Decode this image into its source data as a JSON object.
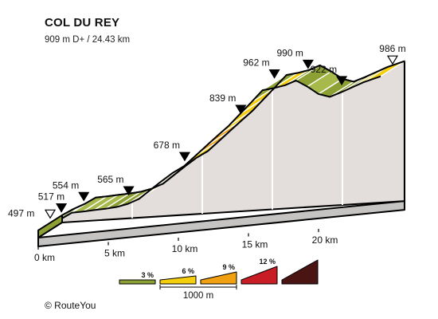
{
  "chart_data": {
    "type": "area",
    "title": "COL DU REY",
    "subtitle": "909 m D+ / 24.43 km",
    "distances_km": [
      0,
      0.8,
      1.6,
      2.4,
      3.2,
      4.0,
      4.8,
      5.6,
      6.4,
      7.2,
      8.0,
      8.8,
      9.6,
      10.4,
      11.2,
      12.0,
      12.8,
      13.6,
      14.4,
      15.2,
      16.0,
      16.8,
      17.6,
      18.4,
      19.2,
      20.0,
      20.8,
      21.6,
      22.4,
      23.2,
      24.43
    ],
    "elevations_m": [
      497,
      517,
      533,
      554,
      556,
      559,
      561,
      565,
      574,
      590,
      620,
      650,
      678,
      700,
      735,
      770,
      805,
      839,
      880,
      920,
      962,
      967,
      975,
      990,
      965,
      935,
      922,
      936,
      952,
      968,
      986
    ],
    "grade_bands": [
      "3",
      "3",
      "3",
      "0",
      "0",
      "0",
      "3",
      "3",
      "6",
      "6",
      "3",
      "6",
      "6",
      "6",
      "9",
      "9",
      "6",
      "6",
      "6",
      "3",
      "3",
      "6",
      "3",
      "3",
      "0",
      "3",
      "3",
      "3",
      "6",
      "6"
    ],
    "markers": [
      {
        "label": "497 m",
        "km": 0,
        "shape": "open"
      },
      {
        "label": "517 m",
        "km": 0.8,
        "shape": "filled"
      },
      {
        "label": "554 m",
        "km": 2.4,
        "shape": "filled"
      },
      {
        "label": "565 m",
        "km": 5.6,
        "shape": "filled"
      },
      {
        "label": "678 m",
        "km": 9.6,
        "shape": "filled"
      },
      {
        "label": "839 m",
        "km": 13.6,
        "shape": "filled"
      },
      {
        "label": "962 m",
        "km": 16.0,
        "shape": "filled"
      },
      {
        "label": "990 m",
        "km": 18.4,
        "shape": "filled"
      },
      {
        "label": "922 m",
        "km": 20.8,
        "shape": "filled"
      },
      {
        "label": "986 m",
        "km": 24.43,
        "shape": "open"
      }
    ],
    "x_ticks": [
      {
        "km": 0,
        "label": "0 km"
      },
      {
        "km": 5,
        "label": "5 km"
      },
      {
        "km": 10,
        "label": "10 km"
      },
      {
        "km": 15,
        "label": "15 km"
      },
      {
        "km": 20,
        "label": "20 km"
      }
    ],
    "legend": [
      {
        "label": "3 %",
        "color": "#8ca033"
      },
      {
        "label": "6 %",
        "color": "#f5cf0e"
      },
      {
        "label": "9 %",
        "color": "#f0a010"
      },
      {
        "label": "12 %",
        "color": "#c81d24"
      },
      {
        "label": "",
        "color": "#4a1412"
      }
    ],
    "scale_label": "1000 m",
    "colors": {
      "band_flat": "#a6b94a",
      "band_3": "#8ca033",
      "band_6": "#f5cf0e",
      "band_9": "#f0a010",
      "side_face": "#e3dedb",
      "base_face": "#c6c4c2",
      "outline": "#000000",
      "divider": "#ffffff"
    }
  },
  "copyright": "© RouteYou"
}
